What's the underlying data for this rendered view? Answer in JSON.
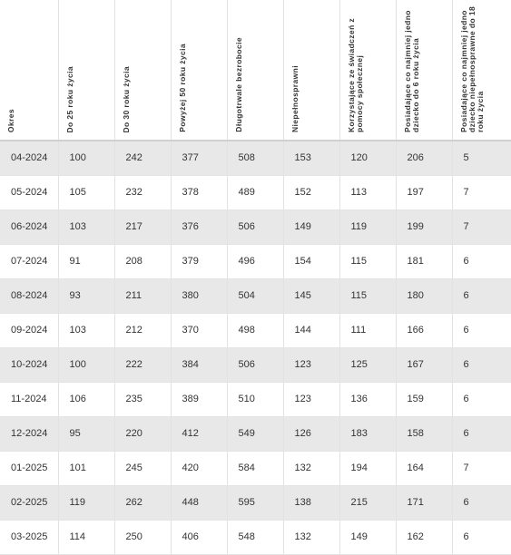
{
  "table": {
    "headers": [
      "Okres",
      "Do 25 roku życia",
      "Do 30 roku życia",
      "Powyżej 50 roku życia",
      "Długotrwale bezrobocie",
      "Niepełnosprawni",
      "Korzystające ze świadczeń z pomocy społecznej",
      "Posiadające co najmniej jedno dziecko do 6 roku życia",
      "Posiadające co najmniej jedno dziecko niepełnosprawne do 18 roku życia"
    ],
    "rows": [
      [
        "04-2024",
        "100",
        "242",
        "377",
        "508",
        "153",
        "120",
        "206",
        "5"
      ],
      [
        "05-2024",
        "105",
        "232",
        "378",
        "489",
        "152",
        "113",
        "197",
        "7"
      ],
      [
        "06-2024",
        "103",
        "217",
        "376",
        "506",
        "149",
        "119",
        "199",
        "7"
      ],
      [
        "07-2024",
        "91",
        "208",
        "379",
        "496",
        "154",
        "115",
        "181",
        "6"
      ],
      [
        "08-2024",
        "93",
        "211",
        "380",
        "504",
        "145",
        "115",
        "180",
        "6"
      ],
      [
        "09-2024",
        "103",
        "212",
        "370",
        "498",
        "144",
        "111",
        "166",
        "6"
      ],
      [
        "10-2024",
        "100",
        "222",
        "384",
        "506",
        "123",
        "125",
        "167",
        "6"
      ],
      [
        "11-2024",
        "106",
        "235",
        "389",
        "510",
        "123",
        "136",
        "159",
        "6"
      ],
      [
        "12-2024",
        "95",
        "220",
        "412",
        "549",
        "126",
        "183",
        "158",
        "6"
      ],
      [
        "01-2025",
        "101",
        "245",
        "420",
        "584",
        "132",
        "194",
        "164",
        "7"
      ],
      [
        "02-2025",
        "119",
        "262",
        "448",
        "595",
        "138",
        "215",
        "171",
        "6"
      ],
      [
        "03-2025",
        "114",
        "250",
        "406",
        "548",
        "132",
        "149",
        "162",
        "6"
      ]
    ]
  },
  "colors": {
    "row_alt": "#e8e8e8",
    "row_base": "#ffffff",
    "text": "#333333",
    "border": "#e2e2e2"
  }
}
